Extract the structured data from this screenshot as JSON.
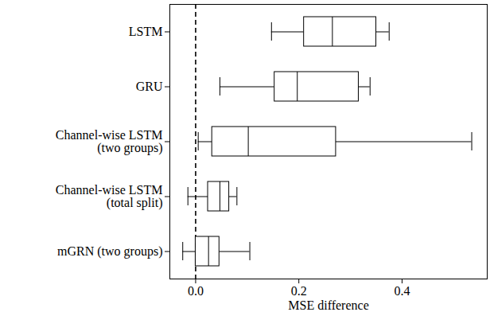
{
  "chart_data": {
    "type": "box",
    "orientation": "horizontal",
    "x_label": "MSE difference",
    "categories": [
      "LSTM",
      "GRU",
      "Channel-wise LSTM\n(two groups)",
      "Channel-wise LSTM\n(total split)",
      "mGRN (two groups)"
    ],
    "whisker_low": [
      0.147,
      0.047,
      0.005,
      -0.015,
      -0.025
    ],
    "q1": [
      0.21,
      0.153,
      0.032,
      0.024,
      0.0
    ],
    "median": [
      0.265,
      0.197,
      0.102,
      0.047,
      0.025
    ],
    "q3": [
      0.35,
      0.316,
      0.272,
      0.065,
      0.046
    ],
    "whisker_high": [
      0.375,
      0.338,
      0.535,
      0.08,
      0.105
    ],
    "reference_x": 0,
    "color": "#000000",
    "xlim": [
      -0.05,
      0.565
    ],
    "xticks": [
      {
        "value": 0,
        "label": "0.0"
      },
      0.2,
      0.4
    ]
  }
}
